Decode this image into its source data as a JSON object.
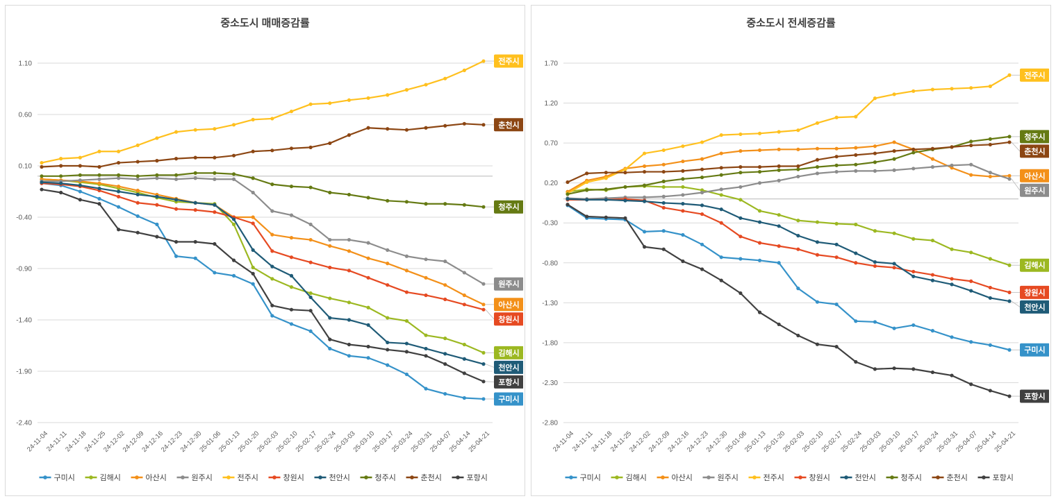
{
  "colors": {
    "grid": "#d9d9d9",
    "zero_axis": "#bfbfbf",
    "tick_text": "#595959",
    "title_text": "#404040",
    "legend_text": "#404040",
    "leader_line": "#bfbfbf",
    "label_text": "#ffffff",
    "panel_border": "#d9d9d9",
    "background": "#ffffff"
  },
  "chart_data": [
    {
      "type": "line",
      "title": "중소도시 매매증감률",
      "legend_position": "bottom",
      "grid": true,
      "ylim": [
        -2.4,
        1.1
      ],
      "y_ticks": [
        "1.10",
        "0.60",
        "0.10",
        "-0.40",
        "-0.90",
        "-1.40",
        "-1.90",
        "-2.40"
      ],
      "x_labels": [
        "24-11-04",
        "24-11-11",
        "24-11-18",
        "24-11-25",
        "24-12-02",
        "24-12-09",
        "24-12-16",
        "24-12-23",
        "24-12-30",
        "25-01-06",
        "25-01-13",
        "25-01-20",
        "25-02-03",
        "25-02-10",
        "25-02-17",
        "25-02-24",
        "25-03-03",
        "25-03-10",
        "25-03-17",
        "25-03-24",
        "25-03-31",
        "25-04-07",
        "25-04-14",
        "25-04-21"
      ],
      "series": [
        {
          "name": "구미시",
          "color": "#3592C9",
          "values": [
            -0.07,
            -0.09,
            -0.15,
            -0.22,
            -0.3,
            -0.39,
            -0.47,
            -0.78,
            -0.8,
            -0.94,
            -0.97,
            -1.05,
            -1.36,
            -1.44,
            -1.51,
            -1.68,
            -1.75,
            -1.77,
            -1.84,
            -1.93,
            -2.07,
            -2.12,
            -2.16,
            -2.17
          ]
        },
        {
          "name": "김해시",
          "color": "#9CB821",
          "values": [
            -0.03,
            -0.04,
            -0.06,
            -0.08,
            -0.12,
            -0.16,
            -0.21,
            -0.25,
            -0.26,
            -0.27,
            -0.47,
            -0.89,
            -1.0,
            -1.08,
            -1.14,
            -1.19,
            -1.23,
            -1.28,
            -1.38,
            -1.41,
            -1.55,
            -1.58,
            -1.64,
            -1.72
          ]
        },
        {
          "name": "아산시",
          "color": "#F39019",
          "values": [
            -0.03,
            -0.04,
            -0.05,
            -0.07,
            -0.1,
            -0.14,
            -0.18,
            -0.22,
            -0.26,
            -0.28,
            -0.4,
            -0.4,
            -0.57,
            -0.6,
            -0.62,
            -0.68,
            -0.73,
            -0.8,
            -0.85,
            -0.92,
            -0.99,
            -1.06,
            -1.16,
            -1.25
          ]
        },
        {
          "name": "원주시",
          "color": "#8C8C8C",
          "values": [
            -0.05,
            -0.05,
            -0.04,
            -0.03,
            -0.02,
            -0.03,
            -0.02,
            -0.03,
            -0.02,
            -0.03,
            -0.03,
            -0.16,
            -0.34,
            -0.38,
            -0.47,
            -0.62,
            -0.62,
            -0.65,
            -0.72,
            -0.78,
            -0.81,
            -0.83,
            -0.94,
            -1.05
          ]
        },
        {
          "name": "전주시",
          "color": "#FFC01E",
          "values": [
            0.13,
            0.17,
            0.18,
            0.24,
            0.24,
            0.3,
            0.37,
            0.43,
            0.45,
            0.46,
            0.5,
            0.55,
            0.56,
            0.63,
            0.7,
            0.71,
            0.74,
            0.76,
            0.79,
            0.84,
            0.89,
            0.95,
            1.03,
            1.12
          ]
        },
        {
          "name": "창원시",
          "color": "#E64A22",
          "values": [
            -0.07,
            -0.08,
            -0.1,
            -0.14,
            -0.2,
            -0.26,
            -0.28,
            -0.32,
            -0.33,
            -0.35,
            -0.4,
            -0.46,
            -0.73,
            -0.79,
            -0.84,
            -0.89,
            -0.92,
            -0.99,
            -1.06,
            -1.13,
            -1.16,
            -1.2,
            -1.25,
            -1.3
          ]
        },
        {
          "name": "천안시",
          "color": "#1F5B77",
          "values": [
            -0.06,
            -0.07,
            -0.09,
            -0.12,
            -0.15,
            -0.18,
            -0.2,
            -0.23,
            -0.26,
            -0.28,
            -0.42,
            -0.72,
            -0.88,
            -0.97,
            -1.18,
            -1.38,
            -1.4,
            -1.45,
            -1.62,
            -1.63,
            -1.68,
            -1.73,
            -1.78,
            -1.83
          ]
        },
        {
          "name": "청주시",
          "color": "#657A13",
          "values": [
            0.0,
            0.0,
            0.01,
            0.01,
            0.01,
            0.0,
            0.01,
            0.01,
            0.03,
            0.03,
            0.02,
            -0.02,
            -0.08,
            -0.1,
            -0.11,
            -0.16,
            -0.18,
            -0.21,
            -0.24,
            -0.25,
            -0.27,
            -0.27,
            -0.28,
            -0.3
          ]
        },
        {
          "name": "춘천시",
          "color": "#8C4613",
          "values": [
            0.09,
            0.1,
            0.1,
            0.09,
            0.13,
            0.14,
            0.15,
            0.17,
            0.18,
            0.18,
            0.2,
            0.24,
            0.25,
            0.27,
            0.28,
            0.32,
            0.4,
            0.47,
            0.46,
            0.45,
            0.47,
            0.49,
            0.51,
            0.5
          ]
        },
        {
          "name": "포항시",
          "color": "#404040",
          "values": [
            -0.13,
            -0.16,
            -0.23,
            -0.27,
            -0.52,
            -0.55,
            -0.59,
            -0.64,
            -0.64,
            -0.66,
            -0.82,
            -0.95,
            -1.26,
            -1.3,
            -1.31,
            -1.59,
            -1.64,
            -1.66,
            -1.69,
            -1.71,
            -1.75,
            -1.83,
            -1.92,
            -2.0
          ]
        }
      ]
    },
    {
      "type": "line",
      "title": "중소도시 전세증감률",
      "legend_position": "bottom",
      "grid": true,
      "ylim": [
        -2.8,
        1.7
      ],
      "y_ticks": [
        "1.70",
        "1.20",
        "0.70",
        "0.20",
        "-0.30",
        "-0.80",
        "-1.30",
        "-1.80",
        "-2.30",
        "-2.80"
      ],
      "x_labels": [
        "24-11-04",
        "24-11-11",
        "24-11-18",
        "24-11-25",
        "24-12-02",
        "24-12-09",
        "24-12-16",
        "24-12-23",
        "24-12-30",
        "25-01-06",
        "25-01-13",
        "25-01-20",
        "25-02-03",
        "25-02-10",
        "25-02-17",
        "25-02-24",
        "25-03-03",
        "25-03-10",
        "25-03-17",
        "25-03-24",
        "25-03-31",
        "25-04-07",
        "25-04-14",
        "25-04-21"
      ],
      "series": [
        {
          "name": "구미시",
          "color": "#3592C9",
          "values": [
            -0.08,
            -0.24,
            -0.25,
            -0.26,
            -0.41,
            -0.4,
            -0.45,
            -0.57,
            -0.73,
            -0.75,
            -0.77,
            -0.8,
            -1.12,
            -1.29,
            -1.32,
            -1.53,
            -1.54,
            -1.62,
            -1.58,
            -1.65,
            -1.73,
            -1.79,
            -1.83,
            -1.89
          ]
        },
        {
          "name": "김해시",
          "color": "#9CB821",
          "values": [
            0.09,
            0.12,
            0.11,
            0.15,
            0.16,
            0.15,
            0.15,
            0.11,
            0.05,
            -0.01,
            -0.15,
            -0.2,
            -0.27,
            -0.29,
            -0.31,
            -0.32,
            -0.4,
            -0.43,
            -0.5,
            -0.52,
            -0.63,
            -0.67,
            -0.75,
            -0.83
          ]
        },
        {
          "name": "아산시",
          "color": "#F39019",
          "values": [
            0.09,
            0.23,
            0.28,
            0.38,
            0.41,
            0.43,
            0.47,
            0.5,
            0.57,
            0.6,
            0.61,
            0.62,
            0.62,
            0.63,
            0.63,
            0.64,
            0.66,
            0.71,
            0.62,
            0.5,
            0.39,
            0.3,
            0.28,
            0.29
          ]
        },
        {
          "name": "원주시",
          "color": "#8C8C8C",
          "values": [
            0.01,
            0.0,
            0.01,
            0.02,
            0.02,
            0.03,
            0.05,
            0.08,
            0.12,
            0.15,
            0.2,
            0.23,
            0.28,
            0.32,
            0.34,
            0.35,
            0.35,
            0.36,
            0.38,
            0.4,
            0.42,
            0.43,
            0.33,
            0.25
          ]
        },
        {
          "name": "전주시",
          "color": "#FFC01E",
          "values": [
            0.07,
            0.21,
            0.26,
            0.37,
            0.57,
            0.61,
            0.66,
            0.71,
            0.8,
            0.81,
            0.82,
            0.84,
            0.86,
            0.95,
            1.02,
            1.03,
            1.26,
            1.31,
            1.35,
            1.37,
            1.38,
            1.39,
            1.41,
            1.55
          ]
        },
        {
          "name": "창원시",
          "color": "#E64A22",
          "values": [
            -0.01,
            -0.01,
            -0.01,
            0.0,
            -0.02,
            -0.11,
            -0.15,
            -0.19,
            -0.3,
            -0.47,
            -0.55,
            -0.59,
            -0.63,
            -0.7,
            -0.73,
            -0.8,
            -0.84,
            -0.86,
            -0.91,
            -0.95,
            -1.0,
            -1.03,
            -1.11,
            -1.17
          ]
        },
        {
          "name": "천안시",
          "color": "#1F5B77",
          "values": [
            0.0,
            -0.01,
            -0.01,
            -0.02,
            -0.03,
            -0.05,
            -0.06,
            -0.08,
            -0.13,
            -0.24,
            -0.29,
            -0.34,
            -0.46,
            -0.54,
            -0.57,
            -0.68,
            -0.79,
            -0.81,
            -0.97,
            -1.02,
            -1.07,
            -1.15,
            -1.24,
            -1.28
          ]
        },
        {
          "name": "청주시",
          "color": "#657A13",
          "values": [
            0.06,
            0.11,
            0.12,
            0.15,
            0.17,
            0.22,
            0.25,
            0.27,
            0.3,
            0.33,
            0.34,
            0.36,
            0.37,
            0.4,
            0.42,
            0.43,
            0.46,
            0.5,
            0.58,
            0.62,
            0.65,
            0.72,
            0.75,
            0.78
          ]
        },
        {
          "name": "춘천시",
          "color": "#8C4613",
          "values": [
            0.21,
            0.32,
            0.33,
            0.33,
            0.34,
            0.34,
            0.35,
            0.37,
            0.39,
            0.4,
            0.4,
            0.41,
            0.41,
            0.49,
            0.53,
            0.55,
            0.57,
            0.6,
            0.62,
            0.63,
            0.65,
            0.67,
            0.68,
            0.71
          ]
        },
        {
          "name": "포항시",
          "color": "#404040",
          "values": [
            -0.07,
            -0.22,
            -0.23,
            -0.24,
            -0.6,
            -0.63,
            -0.78,
            -0.88,
            -1.02,
            -1.18,
            -1.42,
            -1.57,
            -1.71,
            -1.82,
            -1.85,
            -2.04,
            -2.13,
            -2.12,
            -2.13,
            -2.17,
            -2.21,
            -2.32,
            -2.4,
            -2.47
          ]
        }
      ]
    }
  ]
}
